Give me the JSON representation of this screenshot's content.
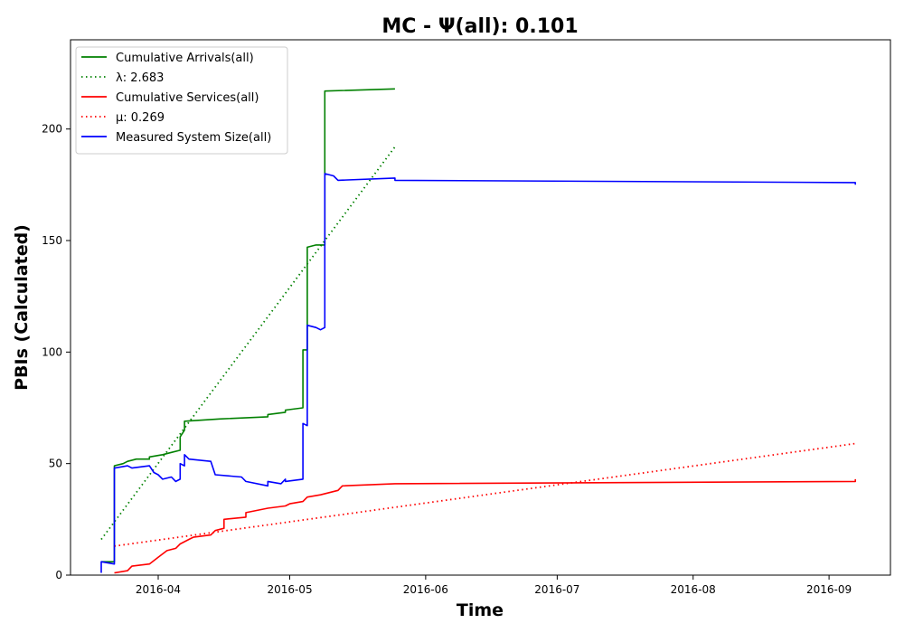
{
  "chart_data": {
    "type": "line",
    "title": "MC -  Ψ(all): 0.101",
    "xlabel": "Time",
    "ylabel": "PBIs (Calculated)",
    "xlim": [
      "2016-03-12",
      "2016-09-15"
    ],
    "ylim": [
      0,
      240
    ],
    "x_ticks": [
      "2016-04",
      "2016-05",
      "2016-06",
      "2016-07",
      "2016-08",
      "2016-09"
    ],
    "y_ticks": [
      0,
      50,
      100,
      150,
      200
    ],
    "grid": false,
    "legend_position": "upper-left",
    "series": [
      {
        "name": "Cumulative Arrivals(all)",
        "color": "#008000",
        "style": "solid",
        "points": [
          [
            "2016-03-19",
            6
          ],
          [
            "2016-03-22",
            6
          ],
          [
            "2016-03-22",
            49
          ],
          [
            "2016-03-24",
            50
          ],
          [
            "2016-03-25",
            51
          ],
          [
            "2016-03-27",
            52
          ],
          [
            "2016-03-30",
            52
          ],
          [
            "2016-03-30",
            53
          ],
          [
            "2016-04-02",
            54
          ],
          [
            "2016-04-04",
            55
          ],
          [
            "2016-04-06",
            56
          ],
          [
            "2016-04-06",
            62
          ],
          [
            "2016-04-07",
            65
          ],
          [
            "2016-04-07",
            69
          ],
          [
            "2016-04-15",
            70
          ],
          [
            "2016-04-26",
            71
          ],
          [
            "2016-04-26",
            72
          ],
          [
            "2016-04-30",
            73
          ],
          [
            "2016-04-30",
            74
          ],
          [
            "2016-05-04",
            75
          ],
          [
            "2016-05-04",
            101
          ],
          [
            "2016-05-05",
            101
          ],
          [
            "2016-05-05",
            147
          ],
          [
            "2016-05-07",
            148
          ],
          [
            "2016-05-09",
            148
          ],
          [
            "2016-05-09",
            217
          ],
          [
            "2016-05-25",
            218
          ]
        ]
      },
      {
        "name": "λ: 2.683",
        "color": "#008000",
        "style": "dotted",
        "points": [
          [
            "2016-03-19",
            16
          ],
          [
            "2016-05-25",
            192
          ]
        ]
      },
      {
        "name": "Cumulative Services(all)",
        "color": "#ff0000",
        "style": "solid",
        "points": [
          [
            "2016-03-22",
            1
          ],
          [
            "2016-03-25",
            2
          ],
          [
            "2016-03-26",
            4
          ],
          [
            "2016-03-30",
            5
          ],
          [
            "2016-04-01",
            8
          ],
          [
            "2016-04-03",
            11
          ],
          [
            "2016-04-05",
            12
          ],
          [
            "2016-04-06",
            14
          ],
          [
            "2016-04-08",
            16
          ],
          [
            "2016-04-09",
            17
          ],
          [
            "2016-04-13",
            18
          ],
          [
            "2016-04-14",
            20
          ],
          [
            "2016-04-16",
            21
          ],
          [
            "2016-04-16",
            25
          ],
          [
            "2016-04-21",
            26
          ],
          [
            "2016-04-21",
            28
          ],
          [
            "2016-04-26",
            30
          ],
          [
            "2016-04-30",
            31
          ],
          [
            "2016-05-01",
            32
          ],
          [
            "2016-05-04",
            33
          ],
          [
            "2016-05-05",
            35
          ],
          [
            "2016-05-08",
            36
          ],
          [
            "2016-05-12",
            38
          ],
          [
            "2016-05-13",
            40
          ],
          [
            "2016-05-25",
            41
          ],
          [
            "2016-09-07",
            42
          ],
          [
            "2016-09-07",
            43
          ]
        ]
      },
      {
        "name": "μ: 0.269",
        "color": "#ff0000",
        "style": "dotted",
        "points": [
          [
            "2016-03-22",
            13
          ],
          [
            "2016-09-07",
            59
          ]
        ]
      },
      {
        "name": "Measured System Size(all)",
        "color": "#0000ff",
        "style": "solid",
        "points": [
          [
            "2016-03-19",
            1
          ],
          [
            "2016-03-19",
            6
          ],
          [
            "2016-03-22",
            5
          ],
          [
            "2016-03-22",
            48
          ],
          [
            "2016-03-25",
            49
          ],
          [
            "2016-03-26",
            48
          ],
          [
            "2016-03-30",
            49
          ],
          [
            "2016-03-31",
            46
          ],
          [
            "2016-04-01",
            45
          ],
          [
            "2016-04-02",
            43
          ],
          [
            "2016-04-04",
            44
          ],
          [
            "2016-04-05",
            42
          ],
          [
            "2016-04-06",
            43
          ],
          [
            "2016-04-06",
            50
          ],
          [
            "2016-04-07",
            49
          ],
          [
            "2016-04-07",
            54
          ],
          [
            "2016-04-08",
            52
          ],
          [
            "2016-04-13",
            51
          ],
          [
            "2016-04-14",
            45
          ],
          [
            "2016-04-20",
            44
          ],
          [
            "2016-04-21",
            42
          ],
          [
            "2016-04-26",
            40
          ],
          [
            "2016-04-26",
            42
          ],
          [
            "2016-04-29",
            41
          ],
          [
            "2016-04-30",
            43
          ],
          [
            "2016-04-30",
            42
          ],
          [
            "2016-05-04",
            43
          ],
          [
            "2016-05-04",
            68
          ],
          [
            "2016-05-05",
            67
          ],
          [
            "2016-05-05",
            112
          ],
          [
            "2016-05-07",
            111
          ],
          [
            "2016-05-08",
            110
          ],
          [
            "2016-05-09",
            111
          ],
          [
            "2016-05-09",
            180
          ],
          [
            "2016-05-11",
            179
          ],
          [
            "2016-05-12",
            177
          ],
          [
            "2016-05-25",
            178
          ],
          [
            "2016-05-25",
            177
          ],
          [
            "2016-09-07",
            176
          ],
          [
            "2016-09-07",
            175
          ]
        ]
      }
    ]
  }
}
